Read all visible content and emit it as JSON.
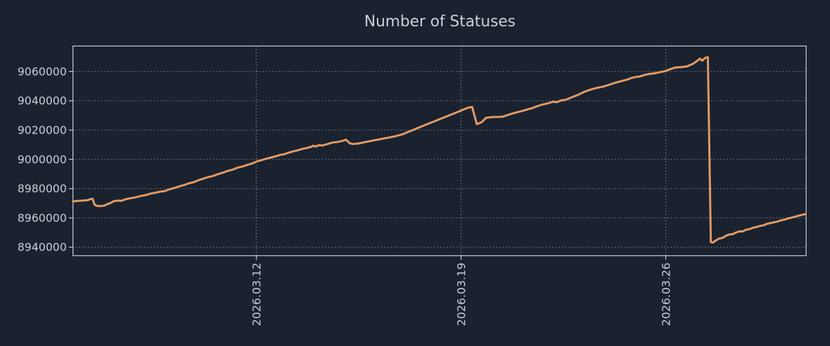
{
  "colors": {
    "background": "#1a2230",
    "text": "#c9ced3",
    "grid": "#99a1aa",
    "line": "#e49a63"
  },
  "chart_data": {
    "type": "line",
    "title": "Number of Statuses",
    "xlabel": "",
    "ylabel": "",
    "grid": true,
    "legend": false,
    "x_units": "days relative to 2026.03.12",
    "xlim": [
      -6.27,
      18.8
    ],
    "ylim": [
      8934200,
      9077400
    ],
    "xticks": [
      0,
      7,
      14
    ],
    "xtick_labels": [
      "2026.03.12",
      "2026.03.19",
      "2026.03.26"
    ],
    "yticks": [
      8940000,
      8960000,
      8980000,
      9000000,
      9020000,
      9040000,
      9060000
    ],
    "ytick_labels": [
      "8940000",
      "8960000",
      "8980000",
      "9000000",
      "9020000",
      "9040000",
      "9060000"
    ],
    "series": [
      {
        "name": "statuses",
        "color": "#e49a63",
        "points": [
          [
            -6.27,
            8971300
          ],
          [
            -6.1,
            8971700
          ],
          [
            -5.94,
            8971800
          ],
          [
            -5.77,
            8972100
          ],
          [
            -5.68,
            8972800
          ],
          [
            -5.6,
            8973100
          ],
          [
            -5.53,
            8969000
          ],
          [
            -5.44,
            8968200
          ],
          [
            -5.3,
            8968100
          ],
          [
            -5.18,
            8968500
          ],
          [
            -5.11,
            8969300
          ],
          [
            -4.97,
            8970300
          ],
          [
            -4.87,
            8971500
          ],
          [
            -4.71,
            8971800
          ],
          [
            -4.61,
            8971700
          ],
          [
            -4.45,
            8972900
          ],
          [
            -4.28,
            8973500
          ],
          [
            -4.12,
            8974100
          ],
          [
            -3.95,
            8975000
          ],
          [
            -3.78,
            8975600
          ],
          [
            -3.62,
            8976600
          ],
          [
            -3.45,
            8977200
          ],
          [
            -3.29,
            8977900
          ],
          [
            -3.12,
            8978400
          ],
          [
            -2.96,
            8979600
          ],
          [
            -2.79,
            8980500
          ],
          [
            -2.63,
            8981600
          ],
          [
            -2.46,
            8982500
          ],
          [
            -2.29,
            8983800
          ],
          [
            -2.13,
            8984500
          ],
          [
            -1.96,
            8985900
          ],
          [
            -1.8,
            8986900
          ],
          [
            -1.63,
            8988000
          ],
          [
            -1.47,
            8988700
          ],
          [
            -1.3,
            8990000
          ],
          [
            -1.14,
            8990900
          ],
          [
            -0.97,
            8992200
          ],
          [
            -0.8,
            8993000
          ],
          [
            -0.64,
            8994300
          ],
          [
            -0.47,
            8995100
          ],
          [
            -0.31,
            8996200
          ],
          [
            -0.14,
            8997200
          ],
          [
            0.02,
            8998600
          ],
          [
            0.19,
            8999500
          ],
          [
            0.35,
            9000500
          ],
          [
            0.52,
            9001300
          ],
          [
            0.69,
            9002300
          ],
          [
            0.85,
            9003200
          ],
          [
            0.92,
            9003300
          ],
          [
            1.09,
            9004500
          ],
          [
            1.25,
            9005400
          ],
          [
            1.42,
            9006200
          ],
          [
            1.58,
            9007100
          ],
          [
            1.75,
            9007900
          ],
          [
            1.87,
            9008500
          ],
          [
            1.94,
            9009300
          ],
          [
            2.03,
            9008800
          ],
          [
            2.15,
            9009700
          ],
          [
            2.27,
            9009500
          ],
          [
            2.44,
            9010500
          ],
          [
            2.58,
            9011400
          ],
          [
            2.74,
            9011800
          ],
          [
            2.91,
            9012400
          ],
          [
            3.07,
            9013400
          ],
          [
            3.19,
            9011000
          ],
          [
            3.29,
            9010500
          ],
          [
            3.45,
            9010700
          ],
          [
            3.9,
            9012500
          ],
          [
            4.23,
            9013800
          ],
          [
            4.54,
            9014900
          ],
          [
            4.78,
            9015900
          ],
          [
            5.01,
            9017200
          ],
          [
            5.18,
            9018600
          ],
          [
            5.42,
            9020600
          ],
          [
            5.65,
            9022500
          ],
          [
            5.89,
            9024400
          ],
          [
            6.13,
            9026300
          ],
          [
            6.36,
            9028200
          ],
          [
            6.6,
            9030100
          ],
          [
            6.84,
            9032000
          ],
          [
            7.02,
            9033500
          ],
          [
            7.24,
            9035300
          ],
          [
            7.38,
            9035800
          ],
          [
            7.54,
            9024000
          ],
          [
            7.71,
            9025400
          ],
          [
            7.85,
            9028300
          ],
          [
            8.02,
            9028800
          ],
          [
            8.42,
            9029100
          ],
          [
            8.73,
            9031200
          ],
          [
            9.08,
            9033000
          ],
          [
            9.44,
            9035000
          ],
          [
            9.6,
            9036300
          ],
          [
            9.79,
            9037400
          ],
          [
            9.98,
            9038300
          ],
          [
            10.15,
            9039400
          ],
          [
            10.26,
            9039000
          ],
          [
            10.43,
            9040300
          ],
          [
            10.55,
            9040500
          ],
          [
            10.74,
            9042000
          ],
          [
            10.97,
            9043800
          ],
          [
            11.26,
            9046500
          ],
          [
            11.49,
            9048000
          ],
          [
            11.68,
            9049000
          ],
          [
            11.85,
            9049600
          ],
          [
            12.04,
            9050800
          ],
          [
            12.27,
            9052300
          ],
          [
            12.51,
            9053600
          ],
          [
            12.68,
            9054500
          ],
          [
            12.82,
            9055500
          ],
          [
            12.98,
            9056300
          ],
          [
            13.1,
            9056500
          ],
          [
            13.27,
            9057600
          ],
          [
            13.46,
            9058400
          ],
          [
            13.62,
            9058800
          ],
          [
            13.81,
            9059600
          ],
          [
            13.98,
            9060200
          ],
          [
            14.17,
            9061700
          ],
          [
            14.33,
            9062700
          ],
          [
            14.52,
            9063000
          ],
          [
            14.71,
            9063400
          ],
          [
            14.88,
            9064800
          ],
          [
            14.95,
            9065500
          ],
          [
            15.07,
            9067200
          ],
          [
            15.16,
            9068800
          ],
          [
            15.25,
            9067400
          ],
          [
            15.35,
            9069300
          ],
          [
            15.44,
            9069800
          ],
          [
            15.54,
            8943500
          ],
          [
            15.61,
            8943200
          ],
          [
            15.7,
            8944400
          ],
          [
            15.82,
            8945900
          ],
          [
            15.94,
            8946300
          ],
          [
            16.06,
            8947800
          ],
          [
            16.18,
            8948700
          ],
          [
            16.29,
            8948900
          ],
          [
            16.41,
            8950100
          ],
          [
            16.53,
            8950900
          ],
          [
            16.63,
            8950700
          ],
          [
            16.74,
            8951900
          ],
          [
            16.86,
            8952300
          ],
          [
            16.98,
            8953300
          ],
          [
            17.1,
            8953700
          ],
          [
            17.22,
            8954500
          ],
          [
            17.34,
            8954900
          ],
          [
            17.45,
            8955900
          ],
          [
            17.57,
            8956400
          ],
          [
            17.69,
            8957000
          ],
          [
            17.81,
            8957400
          ],
          [
            17.93,
            8958300
          ],
          [
            18.04,
            8958700
          ],
          [
            18.16,
            8959500
          ],
          [
            18.28,
            8960100
          ],
          [
            18.4,
            8960700
          ],
          [
            18.52,
            8961400
          ],
          [
            18.64,
            8962000
          ],
          [
            18.78,
            8962600
          ]
        ]
      }
    ]
  }
}
